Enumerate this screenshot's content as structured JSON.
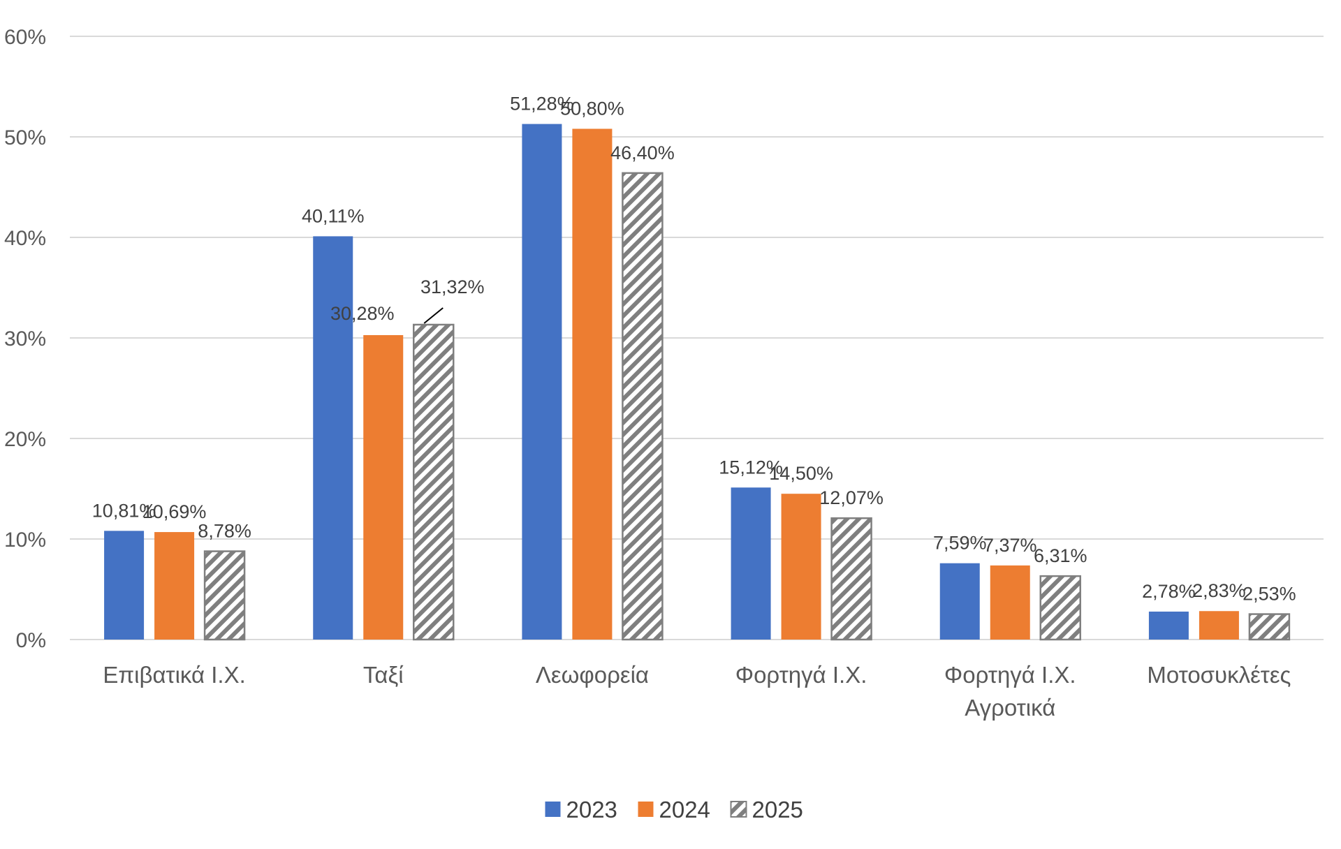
{
  "chart_data": {
    "type": "bar",
    "categories": [
      [
        "Επιβατικά Ι.Χ."
      ],
      [
        "Ταξί"
      ],
      [
        "Λεωφορεία"
      ],
      [
        "Φορτηγά Ι.Χ."
      ],
      [
        "Φορτηγά Ι.Χ.",
        "Αγροτικά"
      ],
      [
        "Μοτοσυκλέτες"
      ]
    ],
    "series": [
      {
        "name": "2023",
        "color": "#4472c4",
        "pattern": "solid",
        "values": [
          10.81,
          40.11,
          51.28,
          15.12,
          7.59,
          2.78
        ],
        "labels": [
          "10,81%",
          "40,11%",
          "51,28%",
          "15,12%",
          "7,59%",
          "2,78%"
        ]
      },
      {
        "name": "2024",
        "color": "#ed7d31",
        "pattern": "solid",
        "values": [
          10.69,
          30.28,
          50.8,
          14.5,
          7.37,
          2.83
        ],
        "labels": [
          "10,69%",
          "30,28%",
          "50,80%",
          "14,50%",
          "7,37%",
          "2,83%"
        ]
      },
      {
        "name": "2025",
        "color": "#7f7f7f",
        "pattern": "diagonal-hatch",
        "values": [
          8.78,
          31.32,
          46.4,
          12.07,
          6.31,
          2.53
        ],
        "labels": [
          "8,78%",
          "31,32%",
          "46,40%",
          "12,07%",
          "6,31%",
          "2,53%"
        ]
      }
    ],
    "y_ticks": [
      {
        "value": 0,
        "label": "0%"
      },
      {
        "value": 10,
        "label": "10%"
      },
      {
        "value": 20,
        "label": "20%"
      },
      {
        "value": 30,
        "label": "30%"
      },
      {
        "value": 40,
        "label": "40%"
      },
      {
        "value": 50,
        "label": "50%"
      },
      {
        "value": 60,
        "label": "60%"
      }
    ],
    "ylim": [
      0,
      60
    ],
    "grid": true,
    "legend_position": "bottom-center",
    "title": "",
    "xlabel": "",
    "ylabel": ""
  }
}
